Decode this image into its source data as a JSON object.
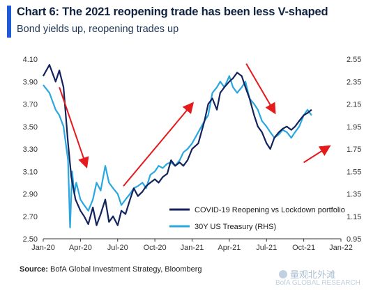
{
  "header": {
    "title": "Chart 6: The 2021 reopening trade has been less V-shaped",
    "subtitle": "Bond yields up, reopening trades up"
  },
  "footer": {
    "source_label": "Source:",
    "source_text": "BofA Global Investment Strategy, Bloomberg",
    "watermark_text": "量观北外滩",
    "watermark_text2": "BofA GLOBAL RESEARCH"
  },
  "colors": {
    "portfolio": "#13235c",
    "treasury": "#2aa7df",
    "arrow": "#e41a1c",
    "accent": "#1f5bd6"
  },
  "chart_data": {
    "type": "line",
    "title": "Chart 6: The 2021 reopening trade has been less V-shaped",
    "subtitle": "Bond yields up, reopening trades up",
    "x_ticks": [
      "Jan-20",
      "Apr-20",
      "Jul-20",
      "Oct-20",
      "Jan-21",
      "Apr-21",
      "Jul-21",
      "Oct-21",
      "Jan-22"
    ],
    "x_range_months": [
      0,
      24
    ],
    "y_left": {
      "ticks": [
        "2.50",
        "2.70",
        "2.90",
        "3.10",
        "3.30",
        "3.50",
        "3.70",
        "3.90",
        "4.10"
      ],
      "range": [
        2.5,
        4.1
      ]
    },
    "y_right": {
      "ticks": [
        "0.95",
        "1.15",
        "1.35",
        "1.55",
        "1.75",
        "1.95",
        "2.15",
        "2.35",
        "2.55"
      ],
      "range": [
        0.95,
        2.55
      ]
    },
    "legend_position": "bottom-right",
    "grid": false,
    "series": [
      {
        "name": "COVID-19 Reopening vs Lockdown portfolio",
        "axis": "left",
        "points": [
          [
            "2020-01-01",
            3.95
          ],
          [
            "2020-01-16",
            4.05
          ],
          [
            "2020-01-31",
            3.9
          ],
          [
            "2020-02-10",
            4.0
          ],
          [
            "2020-02-20",
            3.85
          ],
          [
            "2020-03-01",
            3.35
          ],
          [
            "2020-03-09",
            3.05
          ],
          [
            "2020-03-19",
            2.85
          ],
          [
            "2020-03-31",
            2.75
          ],
          [
            "2020-04-10",
            2.7
          ],
          [
            "2020-04-20",
            2.63
          ],
          [
            "2020-05-01",
            2.78
          ],
          [
            "2020-05-10",
            2.62
          ],
          [
            "2020-05-20",
            2.72
          ],
          [
            "2020-06-01",
            2.85
          ],
          [
            "2020-06-10",
            2.65
          ],
          [
            "2020-06-20",
            2.7
          ],
          [
            "2020-07-01",
            2.62
          ],
          [
            "2020-07-10",
            2.75
          ],
          [
            "2020-07-20",
            2.72
          ],
          [
            "2020-08-01",
            2.85
          ],
          [
            "2020-08-10",
            2.95
          ],
          [
            "2020-08-20",
            2.88
          ],
          [
            "2020-09-01",
            2.92
          ],
          [
            "2020-09-10",
            2.97
          ],
          [
            "2020-09-20",
            3.0
          ],
          [
            "2020-10-01",
            3.03
          ],
          [
            "2020-10-10",
            3.0
          ],
          [
            "2020-10-20",
            3.05
          ],
          [
            "2020-11-01",
            3.08
          ],
          [
            "2020-11-10",
            3.2
          ],
          [
            "2020-11-20",
            3.15
          ],
          [
            "2020-12-01",
            3.18
          ],
          [
            "2020-12-10",
            3.15
          ],
          [
            "2020-12-20",
            3.2
          ],
          [
            "2021-01-01",
            3.3
          ],
          [
            "2021-01-16",
            3.35
          ],
          [
            "2021-01-31",
            3.55
          ],
          [
            "2021-02-10",
            3.7
          ],
          [
            "2021-02-20",
            3.75
          ],
          [
            "2021-03-01",
            3.65
          ],
          [
            "2021-03-09",
            3.8
          ],
          [
            "2021-03-19",
            3.85
          ],
          [
            "2021-03-31",
            3.9
          ],
          [
            "2021-04-10",
            3.93
          ],
          [
            "2021-04-20",
            3.98
          ],
          [
            "2021-05-01",
            3.95
          ],
          [
            "2021-05-10",
            3.85
          ],
          [
            "2021-05-20",
            3.75
          ],
          [
            "2021-06-01",
            3.6
          ],
          [
            "2021-06-10",
            3.5
          ],
          [
            "2021-06-20",
            3.45
          ],
          [
            "2021-07-01",
            3.35
          ],
          [
            "2021-07-10",
            3.3
          ],
          [
            "2021-07-20",
            3.4
          ],
          [
            "2021-08-01",
            3.45
          ],
          [
            "2021-08-10",
            3.48
          ],
          [
            "2021-08-20",
            3.5
          ],
          [
            "2021-09-01",
            3.47
          ],
          [
            "2021-09-10",
            3.5
          ],
          [
            "2021-09-20",
            3.55
          ],
          [
            "2021-10-01",
            3.6
          ],
          [
            "2021-10-10",
            3.62
          ],
          [
            "2021-10-20",
            3.65
          ]
        ]
      },
      {
        "name": "30Y US Treasury (RHS)",
        "axis": "right",
        "points": [
          [
            "2020-01-01",
            2.32
          ],
          [
            "2020-01-16",
            2.25
          ],
          [
            "2020-01-31",
            2.1
          ],
          [
            "2020-02-10",
            2.05
          ],
          [
            "2020-02-20",
            1.95
          ],
          [
            "2020-03-01",
            1.65
          ],
          [
            "2020-03-06",
            1.05
          ],
          [
            "2020-03-11",
            1.55
          ],
          [
            "2020-03-16",
            1.35
          ],
          [
            "2020-03-21",
            1.45
          ],
          [
            "2020-03-31",
            1.3
          ],
          [
            "2020-04-10",
            1.25
          ],
          [
            "2020-04-20",
            1.2
          ],
          [
            "2020-05-01",
            1.3
          ],
          [
            "2020-05-10",
            1.45
          ],
          [
            "2020-05-20",
            1.38
          ],
          [
            "2020-06-01",
            1.6
          ],
          [
            "2020-06-10",
            1.45
          ],
          [
            "2020-06-20",
            1.4
          ],
          [
            "2020-07-01",
            1.35
          ],
          [
            "2020-07-10",
            1.25
          ],
          [
            "2020-07-20",
            1.3
          ],
          [
            "2020-08-01",
            1.35
          ],
          [
            "2020-08-10",
            1.4
          ],
          [
            "2020-08-20",
            1.42
          ],
          [
            "2020-09-01",
            1.45
          ],
          [
            "2020-09-10",
            1.4
          ],
          [
            "2020-09-20",
            1.52
          ],
          [
            "2020-10-01",
            1.55
          ],
          [
            "2020-10-10",
            1.6
          ],
          [
            "2020-10-20",
            1.58
          ],
          [
            "2020-11-01",
            1.62
          ],
          [
            "2020-11-10",
            1.63
          ],
          [
            "2020-11-20",
            1.6
          ],
          [
            "2020-12-01",
            1.65
          ],
          [
            "2020-12-10",
            1.72
          ],
          [
            "2020-12-20",
            1.75
          ],
          [
            "2021-01-01",
            1.8
          ],
          [
            "2021-01-16",
            1.9
          ],
          [
            "2021-01-31",
            2.0
          ],
          [
            "2021-02-10",
            2.05
          ],
          [
            "2021-02-20",
            2.25
          ],
          [
            "2021-03-01",
            2.3
          ],
          [
            "2021-03-09",
            2.35
          ],
          [
            "2021-03-19",
            2.3
          ],
          [
            "2021-03-31",
            2.4
          ],
          [
            "2021-04-10",
            2.3
          ],
          [
            "2021-04-20",
            2.25
          ],
          [
            "2021-05-01",
            2.3
          ],
          [
            "2021-05-10",
            2.35
          ],
          [
            "2021-05-20",
            2.2
          ],
          [
            "2021-06-01",
            2.15
          ],
          [
            "2021-06-10",
            2.1
          ],
          [
            "2021-06-20",
            2.0
          ],
          [
            "2021-07-01",
            1.95
          ],
          [
            "2021-07-10",
            1.9
          ],
          [
            "2021-07-20",
            1.85
          ],
          [
            "2021-08-01",
            1.88
          ],
          [
            "2021-08-10",
            1.92
          ],
          [
            "2021-08-20",
            1.9
          ],
          [
            "2021-09-01",
            1.85
          ],
          [
            "2021-09-10",
            1.9
          ],
          [
            "2021-09-20",
            1.95
          ],
          [
            "2021-10-01",
            2.05
          ],
          [
            "2021-10-10",
            2.1
          ],
          [
            "2021-10-20",
            2.05
          ]
        ]
      }
    ],
    "annotations": [
      {
        "type": "arrow",
        "direction": "down",
        "from": [
          "2020-02-10",
          3.85
        ],
        "to": [
          "2020-04-15",
          3.15
        ],
        "axis": "left"
      },
      {
        "type": "arrow",
        "direction": "up",
        "from": [
          "2020-07-15",
          2.97
        ],
        "to": [
          "2020-12-31",
          3.7
        ],
        "axis": "left"
      },
      {
        "type": "arrow",
        "direction": "down",
        "from": [
          "2021-05-12",
          4.06
        ],
        "to": [
          "2021-07-20",
          3.63
        ],
        "axis": "left"
      },
      {
        "type": "arrow",
        "direction": "up",
        "from": [
          "2021-10-01",
          3.18
        ],
        "to": [
          "2021-12-01",
          3.32
        ],
        "axis": "left"
      }
    ]
  }
}
